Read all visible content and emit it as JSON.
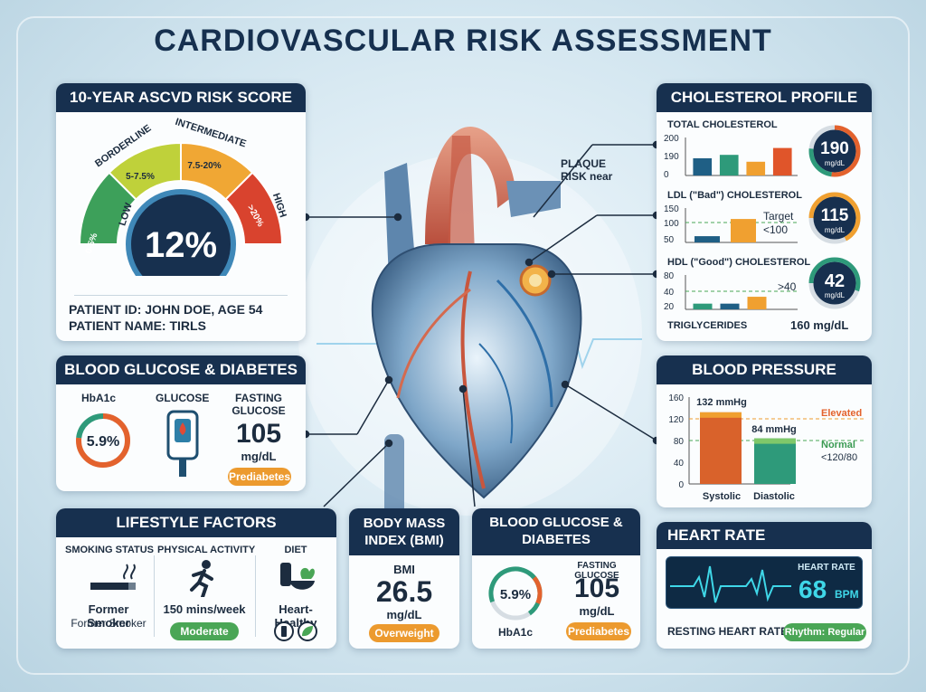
{
  "title": "CARDIOVASCULAR RISK ASSESSMENT",
  "ascvd": {
    "header": "10-YEAR ASCVD RISK SCORE",
    "score": "12%",
    "score_fraction": 0.12,
    "segments": [
      {
        "label": "LOW",
        "range": "0-5%",
        "color": "#3da05a"
      },
      {
        "label": "BORDERLINE",
        "range": "5-7.5%",
        "color": "#bfd13a"
      },
      {
        "label": "INTERMEDIATE",
        "range": "7.5-20%",
        "color": "#f0a734"
      },
      {
        "label": "HIGH",
        "range": ">20%",
        "color": "#d9432e"
      }
    ],
    "low_inner": "LOW",
    "low_inner_range": "0-5%",
    "high_inner": "HIGH",
    "high_inner_range": ">20%",
    "patient_id": "PATIENT ID: JOHN DOE, AGE 54",
    "patient_name": "PATIENT NAME: TIRLS"
  },
  "glucose_left": {
    "header": "BLOOD GLUCOSE & DIABETES",
    "hba1c_label": "HbA1c",
    "hba1c_value": "5.9%",
    "glucose_label": "GLUCOSE",
    "fasting_label": "FASTING GLUCOSE",
    "fasting_value": "105",
    "fasting_unit": "mg/dL",
    "badge": "Prediabetes"
  },
  "lifestyle": {
    "header": "LIFESTYLE FACTORS",
    "smoking_label": "SMOKING STATUS",
    "smoking_value": "Former Smoker",
    "smoking_sub": "Former Smoker",
    "activity_label": "PHYSICAL ACTIVITY",
    "activity_value": "150 mins/week",
    "activity_badge": "Moderate",
    "diet_label": "DIET",
    "diet_value": "Heart-Healthy"
  },
  "bmi": {
    "header": "BODY MASS INDEX (BMI)",
    "label": "BMI",
    "value": "26.5",
    "unit": "mg/dL",
    "badge": "Overweight"
  },
  "glucose_center": {
    "header": "BLOOD GLUCOSE & DIABETES",
    "hba1c_value": "5.9%",
    "hba1c_label": "HbA1c",
    "fasting_label": "FASTING GLUCOSE",
    "fasting_value": "105",
    "fasting_unit": "mg/dL",
    "badge": "Prediabetes"
  },
  "heart": {
    "plaque_label": "PLAQUE RISK near"
  },
  "cholesterol": {
    "header": "CHOLESTEROL PROFILE",
    "total": {
      "label": "TOTAL CHOLESTEROL",
      "value": "190",
      "unit": "mg/dL",
      "ticks": [
        "200",
        "190",
        "0"
      ]
    },
    "ldl": {
      "label": "LDL (\"Bad\") CHOLESTEROL",
      "value": "115",
      "unit": "mg/dL",
      "ticks": [
        "150",
        "100",
        "50"
      ],
      "target": "Target <100"
    },
    "hdl": {
      "label": "HDL (\"Good\") CHOLESTEROL",
      "value": "42",
      "unit": "mg/dL",
      "ticks": [
        "80",
        "40",
        "20"
      ],
      "target": ">40"
    },
    "trig_label": "TRIGLYCERIDES",
    "trig_value": "160 mg/dL"
  },
  "bp": {
    "header": "BLOOD PRESSURE",
    "ticks": [
      "160",
      "120",
      "80",
      "40",
      "0"
    ],
    "systolic_label": "Systolic",
    "diastolic_label": "Diastolic",
    "systolic_value": "132 mmHg",
    "diastolic_value": "84 mmHg",
    "elevated_label": "Elevated",
    "normal_label": "Normal",
    "normal_target": "<120/80"
  },
  "heart_rate": {
    "header": "HEART RATE",
    "monitor_label": "HEART RATE",
    "value": "68",
    "unit": "BPM",
    "resting_label": "RESTING HEART RATE:",
    "rhythm_badge": "Rhythm: Regular"
  },
  "chart_data": [
    {
      "type": "bar",
      "title": "TOTAL CHOLESTEROL",
      "y_ticks": [
        0,
        190,
        200
      ],
      "series": [
        {
          "values": [
            175,
            180,
            170,
            190
          ],
          "colors": [
            "#1f5f85",
            "#2e9a7a",
            "#f0a030",
            "#e0552a"
          ]
        }
      ]
    },
    {
      "type": "bar",
      "title": "LDL (\"Bad\") CHOLESTEROL",
      "y_ticks": [
        50,
        100,
        150
      ],
      "target_line": 100,
      "series": [
        {
          "values": [
            60,
            115
          ],
          "colors": [
            "#1f5f85",
            "#f0a030"
          ]
        }
      ]
    },
    {
      "type": "bar",
      "title": "HDL (\"Good\") CHOLESTEROL",
      "y_ticks": [
        20,
        40,
        80
      ],
      "target_line": 40,
      "series": [
        {
          "values": [
            30,
            30,
            42
          ],
          "colors": [
            "#2e9a7a",
            "#1f5f85",
            "#f0a030"
          ]
        }
      ]
    },
    {
      "type": "bar",
      "title": "BLOOD PRESSURE",
      "categories": [
        "Systolic",
        "Diastolic"
      ],
      "ylim": [
        0,
        160
      ],
      "series": [
        {
          "values": [
            132,
            84
          ]
        }
      ]
    }
  ]
}
